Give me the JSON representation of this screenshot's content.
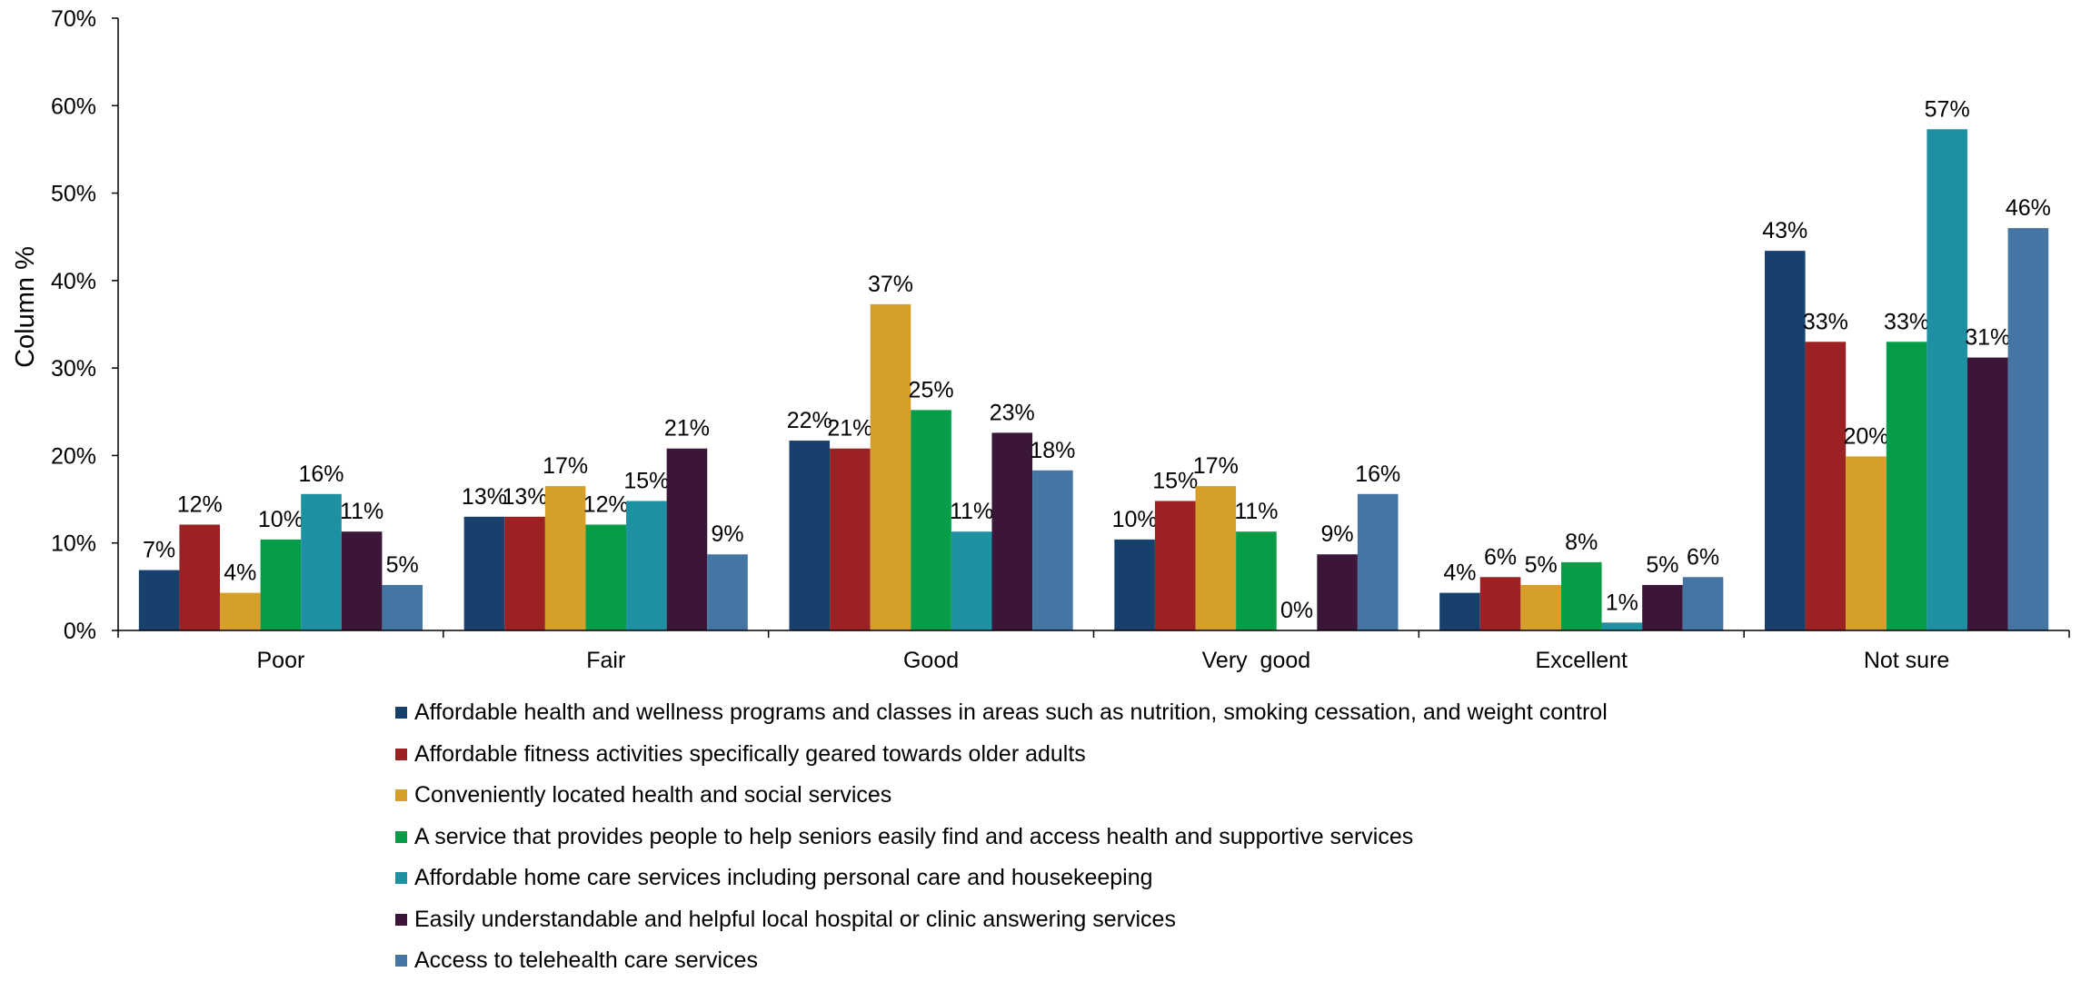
{
  "chart_data": {
    "type": "bar",
    "ylabel": "Column %",
    "ylim": [
      0,
      70
    ],
    "yticks": [
      "0%",
      "10%",
      "20%",
      "30%",
      "40%",
      "50%",
      "60%",
      "70%"
    ],
    "grid": false,
    "legend_position": "bottom",
    "categories": [
      "Poor",
      "Fair",
      "Good",
      "Very  good",
      "Excellent",
      "Not sure"
    ],
    "series": [
      {
        "name": "Affordable health and wellness programs and classes in areas such as nutrition, smoking cessation, and weight control",
        "color": "#17406d",
        "values": [
          6.9,
          13.0,
          21.7,
          10.4,
          4.3,
          43.4
        ],
        "labels": [
          "7%",
          "13%",
          "22%",
          "10%",
          "4%",
          "43%"
        ]
      },
      {
        "name": "Affordable fitness activities specifically geared towards older adults",
        "color": "#9c2123",
        "values": [
          12.1,
          13.0,
          20.8,
          14.8,
          6.1,
          33.0
        ],
        "labels": [
          "12%",
          "13%",
          "21%",
          "15%",
          "6%",
          "33%"
        ]
      },
      {
        "name": "Conveniently located health and social services",
        "color": "#d59f2a",
        "values": [
          4.3,
          16.5,
          37.3,
          16.5,
          5.2,
          19.9
        ],
        "labels": [
          "4%",
          "17%",
          "37%",
          "17%",
          "5%",
          "20%"
        ]
      },
      {
        "name": "A service that provides people to help seniors easily find and access health and supportive services",
        "color": "#079d48",
        "values": [
          10.4,
          12.1,
          25.2,
          11.3,
          7.8,
          33.0
        ],
        "labels": [
          "10%",
          "12%",
          "25%",
          "11%",
          "8%",
          "33%"
        ]
      },
      {
        "name": "Affordable home care services including personal care and housekeeping",
        "color": "#1d91a1",
        "values": [
          15.6,
          14.8,
          11.3,
          0.0,
          0.9,
          57.3
        ],
        "labels": [
          "16%",
          "15%",
          "11%",
          "0%",
          "1%",
          "57%"
        ]
      },
      {
        "name": "Easily understandable and helpful local hospital or clinic answering services",
        "color": "#3b1638",
        "values": [
          11.3,
          20.8,
          22.6,
          8.7,
          5.2,
          31.2
        ],
        "labels": [
          "11%",
          "21%",
          "23%",
          "9%",
          "5%",
          "31%"
        ]
      },
      {
        "name": "Access to telehealth care services",
        "color": "#4576a3",
        "values": [
          5.2,
          8.7,
          18.3,
          15.6,
          6.1,
          46.0
        ],
        "labels": [
          "5%",
          "9%",
          "18%",
          "16%",
          "6%",
          "46%"
        ]
      }
    ]
  }
}
